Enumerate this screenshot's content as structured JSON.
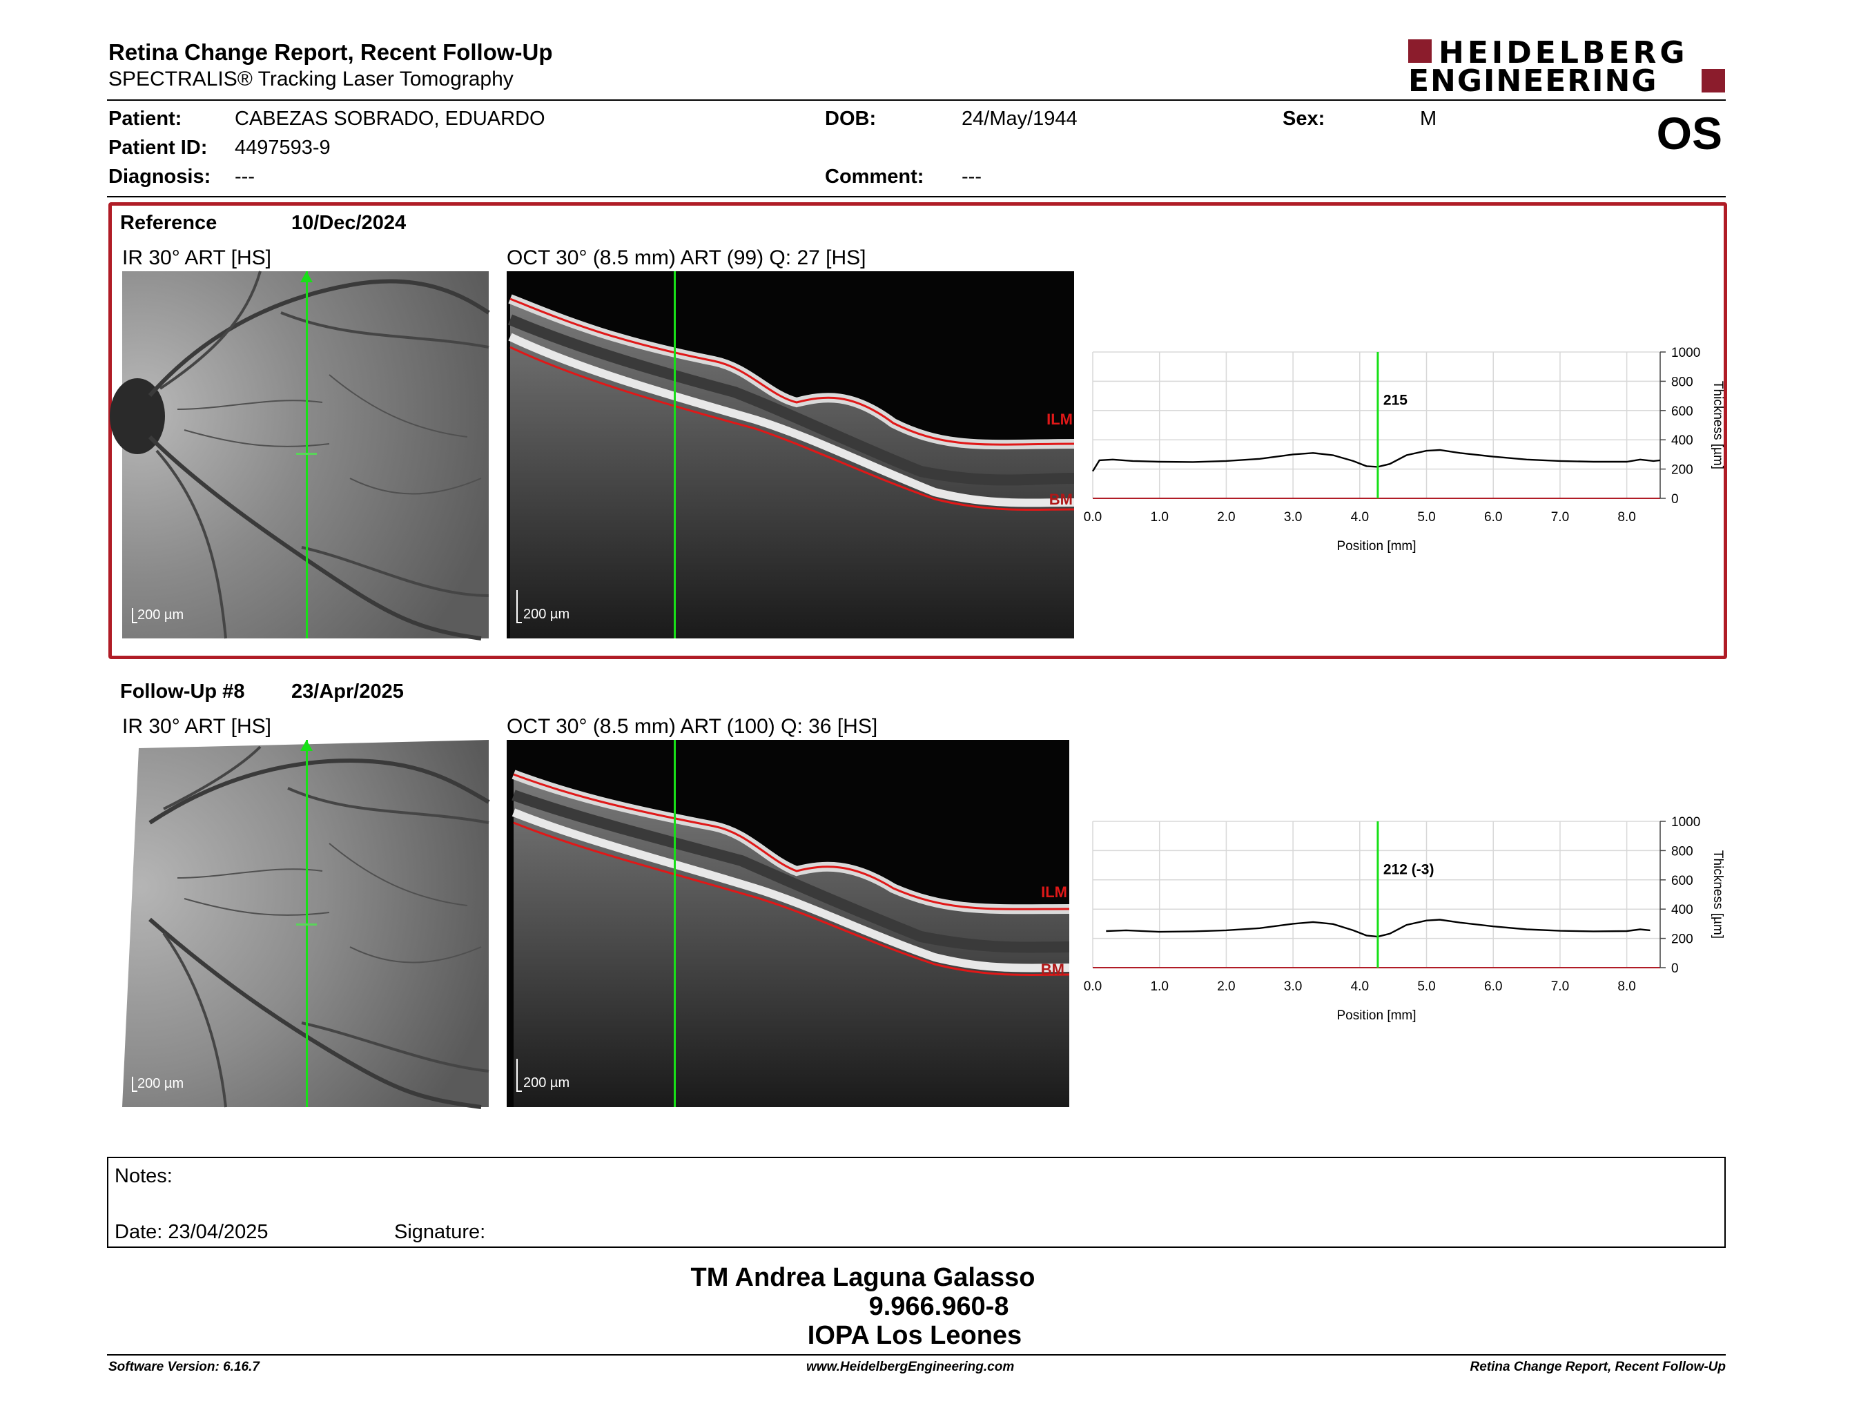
{
  "header": {
    "title": "Retina Change Report, Recent Follow-Up",
    "subtitle": "SPECTRALIS® Tracking Laser Tomography",
    "logo_line1": "HEIDELBERG",
    "logo_line2": "ENGINEERING",
    "eye": "OS"
  },
  "patient": {
    "patient_label": "Patient:",
    "patient_value": "CABEZAS SOBRADO, EDUARDO",
    "dob_label": "DOB:",
    "dob_value": "24/May/1944",
    "sex_label": "Sex:",
    "sex_value": "M",
    "id_label": "Patient ID:",
    "id_value": "4497593-9",
    "diagnosis_label": "Diagnosis:",
    "diagnosis_value": "---",
    "comment_label": "Comment:",
    "comment_value": "---"
  },
  "reference": {
    "label": "Reference",
    "date": "10/Dec/2024",
    "ir_caption": "IR 30° ART [HS]",
    "oct_caption": "OCT 30° (8.5 mm) ART (99) Q: 27 [HS]",
    "scale_ir": "200 µm",
    "scale_oct": "200 µm",
    "ilm": "ILM",
    "bm": "BM"
  },
  "followup": {
    "label": "Follow-Up #8",
    "date": "23/Apr/2025",
    "ir_caption": "IR 30° ART [HS]",
    "oct_caption": "OCT 30° (8.5 mm) ART (100) Q: 36 [HS]",
    "scale_ir": "200 µm",
    "scale_oct": "200 µm",
    "ilm": "ILM",
    "bm": "BM"
  },
  "chart_data": [
    {
      "type": "line",
      "xlabel": "Position [mm]",
      "ylabel": "Thickness [µm]",
      "xlim": [
        0,
        8.5
      ],
      "ylim": [
        0,
        1000
      ],
      "xticks": [
        "0.0",
        "1.0",
        "2.0",
        "3.0",
        "4.0",
        "5.0",
        "6.0",
        "7.0",
        "8.0"
      ],
      "yticks": [
        "0",
        "200",
        "400",
        "600",
        "800",
        "1000"
      ],
      "grid": true,
      "cursor_x": 4.27,
      "cursor_label": "215",
      "x": [
        0.0,
        0.1,
        0.3,
        0.6,
        1.0,
        1.5,
        2.0,
        2.5,
        3.0,
        3.3,
        3.6,
        3.9,
        4.1,
        4.27,
        4.45,
        4.7,
        5.0,
        5.2,
        5.5,
        6.0,
        6.5,
        7.0,
        7.5,
        8.0,
        8.2,
        8.4,
        8.5
      ],
      "values": [
        185,
        260,
        265,
        255,
        250,
        248,
        255,
        270,
        300,
        310,
        295,
        255,
        220,
        215,
        235,
        295,
        325,
        330,
        310,
        285,
        265,
        255,
        250,
        250,
        265,
        255,
        260
      ]
    },
    {
      "type": "line",
      "xlabel": "Position [mm]",
      "ylabel": "Thickness [µm]",
      "xlim": [
        0,
        8.5
      ],
      "ylim": [
        0,
        1000
      ],
      "xticks": [
        "0.0",
        "1.0",
        "2.0",
        "3.0",
        "4.0",
        "5.0",
        "6.0",
        "7.0",
        "8.0"
      ],
      "yticks": [
        "0",
        "200",
        "400",
        "600",
        "800",
        "1000"
      ],
      "grid": true,
      "cursor_x": 4.27,
      "cursor_label": "212 (-3)",
      "x": [
        0.2,
        0.5,
        1.0,
        1.5,
        2.0,
        2.5,
        3.0,
        3.3,
        3.6,
        3.9,
        4.1,
        4.27,
        4.45,
        4.7,
        5.0,
        5.2,
        5.5,
        6.0,
        6.5,
        7.0,
        7.5,
        8.0,
        8.2,
        8.35
      ],
      "values": [
        250,
        255,
        245,
        248,
        255,
        270,
        300,
        312,
        298,
        255,
        220,
        212,
        232,
        292,
        322,
        328,
        308,
        282,
        262,
        252,
        248,
        250,
        262,
        255
      ]
    }
  ],
  "notes": {
    "notes_label": "Notes:",
    "date_label": "Date: 23/04/2025",
    "signature_label": "Signature:"
  },
  "signature": {
    "name": "TM Andrea Laguna Galasso",
    "rut": "9.966.960-8",
    "institution": "IOPA Los Leones"
  },
  "footer": {
    "software": "Software Version: 6.16.7",
    "website": "www.HeidelbergEngineering.com",
    "report_name": "Retina Change Report, Recent Follow-Up"
  }
}
